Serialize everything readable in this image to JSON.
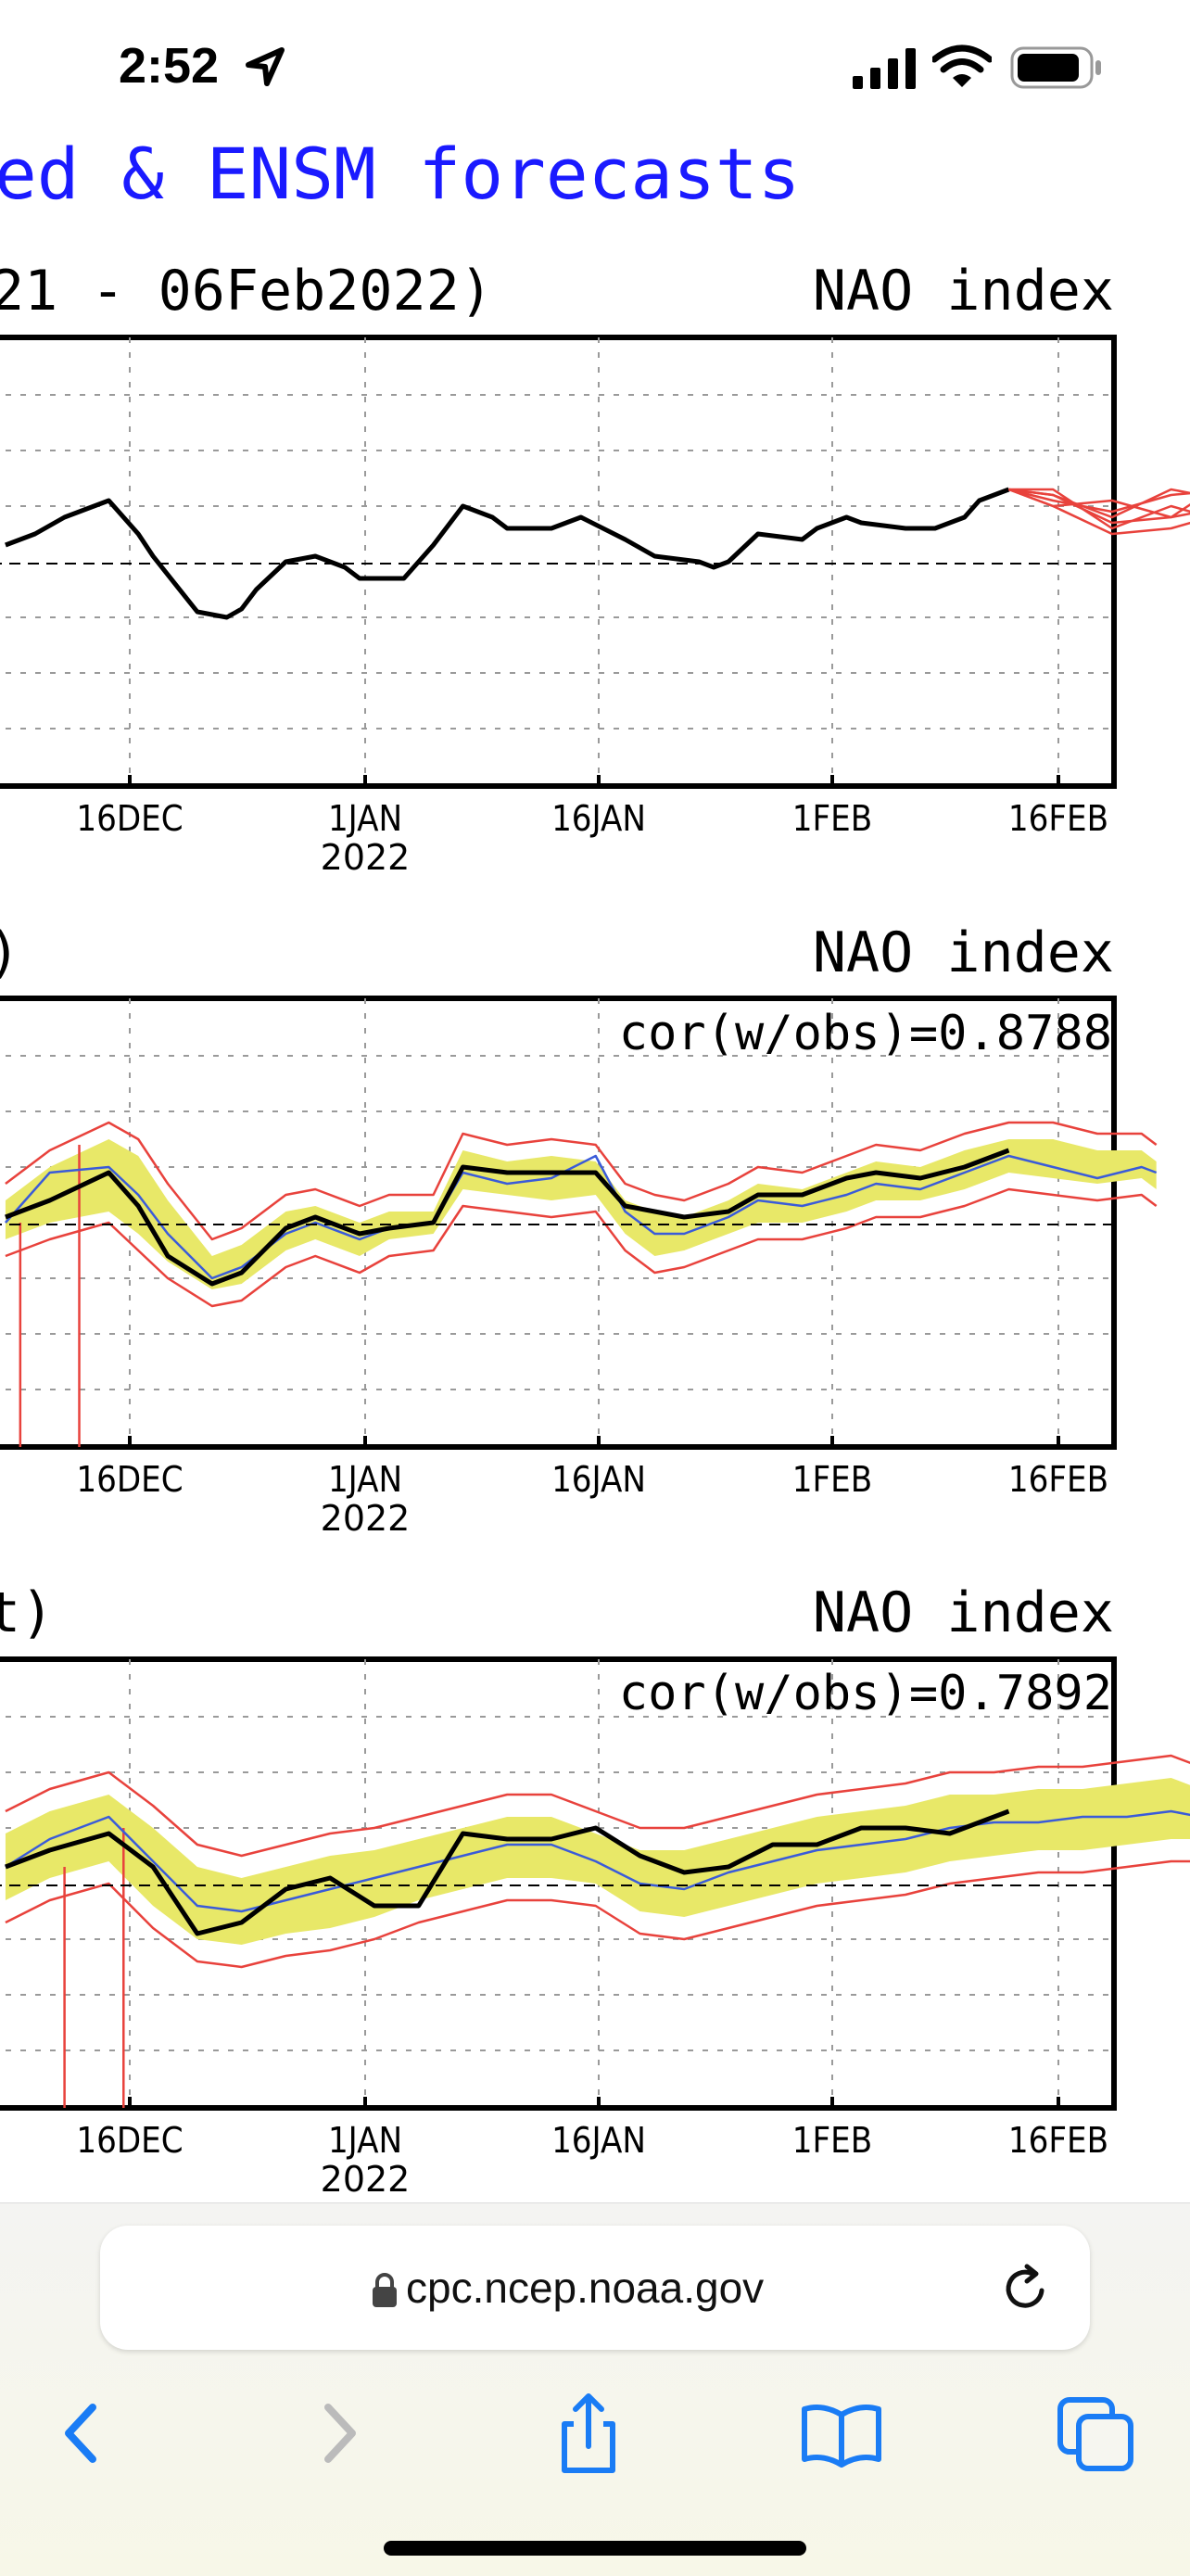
{
  "status_bar": {
    "time": "2:52"
  },
  "browser": {
    "url": "cpc.ncep.noaa.gov"
  },
  "page_title": "ed & ENSM forecasts",
  "chart_data": [
    {
      "type": "line",
      "title": "21 - 06Feb2022)",
      "label_right": "NAO index",
      "x_ticks": [
        "16DEC",
        "1JAN",
        "16JAN",
        "1FEB",
        "16FEB"
      ],
      "x_subtick": "2022",
      "grid": true,
      "series": [
        {
          "color": "#000000",
          "x": [
            1,
            3,
            5,
            8,
            10,
            11,
            14,
            16,
            17,
            18,
            20,
            22,
            24,
            25,
            28,
            30,
            32,
            34,
            35,
            36,
            38,
            40,
            43,
            45,
            48,
            49,
            50,
            52,
            55,
            56,
            58,
            59,
            62,
            64,
            66,
            67,
            68,
            69
          ],
          "y": [
            0.3,
            0.5,
            0.8,
            1.1,
            0.5,
            0.1,
            -0.9,
            -1.0,
            -0.85,
            -0.5,
            0.0,
            0.1,
            -0.1,
            -0.3,
            -0.3,
            0.3,
            1.0,
            0.8,
            0.6,
            0.6,
            0.6,
            0.8,
            0.4,
            0.1,
            0.0,
            -0.1,
            0.0,
            0.5,
            0.4,
            0.6,
            0.8,
            0.7,
            0.6,
            0.6,
            0.8,
            1.1,
            1.2,
            1.3
          ]
        },
        {
          "color": "#e8423c",
          "x": [
            69,
            72,
            76,
            80,
            84,
            87
          ],
          "y": [
            1.3,
            1.2,
            0.7,
            0.8,
            1.0,
            0.6
          ]
        },
        {
          "color": "#e8423c",
          "x": [
            69,
            72,
            76,
            80,
            84,
            87
          ],
          "y": [
            1.3,
            1.0,
            0.5,
            0.6,
            0.9,
            1.4
          ]
        },
        {
          "color": "#e8423c",
          "x": [
            69,
            72,
            76,
            80,
            84,
            87
          ],
          "y": [
            1.3,
            1.1,
            0.9,
            1.2,
            1.3,
            1.0
          ]
        },
        {
          "color": "#e8423c",
          "x": [
            69,
            72,
            76,
            80,
            84,
            87
          ],
          "y": [
            1.3,
            1.3,
            0.6,
            1.0,
            0.7,
            0.8
          ]
        },
        {
          "color": "#e8423c",
          "x": [
            69,
            72,
            76,
            80,
            84,
            87
          ],
          "y": [
            1.3,
            1.0,
            1.1,
            0.8,
            1.5,
            1.2
          ]
        },
        {
          "color": "#e8423c",
          "x": [
            69,
            72,
            76,
            80,
            84,
            87
          ],
          "y": [
            1.3,
            1.2,
            0.8,
            1.3,
            1.1,
            0.5
          ]
        }
      ]
    },
    {
      "type": "line",
      "title": ")",
      "label_right": "NAO index",
      "annotation": "cor(w/obs)=0.8788",
      "x_ticks": [
        "16DEC",
        "1JAN",
        "16JAN",
        "1FEB",
        "16FEB"
      ],
      "x_subtick": "2022",
      "grid": true,
      "band": {
        "color": "#e8e868",
        "x": [
          1,
          4,
          8,
          10,
          12,
          15,
          17,
          20,
          22,
          25,
          27,
          30,
          32,
          35,
          38,
          41,
          43,
          45,
          47,
          50,
          52,
          55,
          58,
          60,
          63,
          66,
          69,
          72,
          75,
          78,
          79
        ],
        "lo": [
          -0.3,
          0.0,
          0.2,
          -0.2,
          -0.7,
          -1.2,
          -1.1,
          -0.5,
          -0.3,
          -0.6,
          -0.3,
          -0.2,
          0.6,
          0.5,
          0.4,
          0.5,
          -0.2,
          -0.6,
          -0.5,
          -0.2,
          0.0,
          0.0,
          0.2,
          0.4,
          0.4,
          0.6,
          0.9,
          0.8,
          0.7,
          0.8,
          0.6
        ],
        "hi": [
          0.4,
          1.0,
          1.5,
          1.2,
          0.4,
          -0.6,
          -0.4,
          0.2,
          0.3,
          0.0,
          0.2,
          0.2,
          1.3,
          1.1,
          1.2,
          1.1,
          0.4,
          0.2,
          0.1,
          0.4,
          0.7,
          0.6,
          0.9,
          1.1,
          1.0,
          1.3,
          1.5,
          1.5,
          1.3,
          1.3,
          1.1
        ]
      },
      "series": [
        {
          "color": "#e8423c",
          "x": [
            1,
            4,
            8,
            10,
            12,
            15,
            17,
            20,
            22,
            25,
            27,
            30,
            32,
            35,
            38,
            41,
            43,
            45,
            47,
            50,
            52,
            55,
            58,
            60,
            63,
            66,
            69,
            72,
            75,
            78,
            79
          ],
          "y": [
            -0.6,
            -0.3,
            0.0,
            -0.5,
            -1.0,
            -1.5,
            -1.4,
            -0.8,
            -0.6,
            -0.9,
            -0.6,
            -0.5,
            0.3,
            0.2,
            0.1,
            0.2,
            -0.5,
            -0.9,
            -0.8,
            -0.5,
            -0.3,
            -0.3,
            -0.1,
            0.1,
            0.1,
            0.3,
            0.6,
            0.5,
            0.4,
            0.5,
            0.3
          ]
        },
        {
          "color": "#e8423c",
          "x": [
            1,
            4,
            8,
            10,
            12,
            15,
            17,
            20,
            22,
            25,
            27,
            30,
            32,
            35,
            38,
            41,
            43,
            45,
            47,
            50,
            52,
            55,
            58,
            60,
            63,
            66,
            69,
            72,
            75,
            78,
            79
          ],
          "y": [
            0.7,
            1.3,
            1.8,
            1.5,
            0.7,
            -0.3,
            -0.1,
            0.5,
            0.6,
            0.3,
            0.5,
            0.5,
            1.6,
            1.4,
            1.5,
            1.4,
            0.7,
            0.5,
            0.4,
            0.7,
            1.0,
            0.9,
            1.2,
            1.4,
            1.3,
            1.6,
            1.8,
            1.8,
            1.6,
            1.6,
            1.4
          ]
        },
        {
          "color": "#e8423c",
          "x": [
            2,
            2,
            2
          ],
          "y": [
            0.0,
            -2.0,
            -4.5
          ]
        },
        {
          "color": "#e8423c",
          "x": [
            6,
            6,
            6
          ],
          "y": [
            1.4,
            -2.0,
            -4.5
          ]
        },
        {
          "color": "#3a5bd9",
          "x": [
            1,
            4,
            8,
            10,
            12,
            15,
            17,
            20,
            22,
            25,
            27,
            30,
            32,
            35,
            38,
            41,
            43,
            45,
            47,
            50,
            52,
            55,
            58,
            60,
            63,
            66,
            69,
            72,
            75,
            78,
            79
          ],
          "y": [
            0.0,
            0.9,
            1.0,
            0.5,
            -0.2,
            -1.0,
            -0.8,
            -0.2,
            0.0,
            -0.3,
            -0.1,
            0.0,
            0.9,
            0.7,
            0.8,
            1.2,
            0.2,
            -0.2,
            -0.2,
            0.1,
            0.4,
            0.3,
            0.5,
            0.7,
            0.6,
            0.9,
            1.2,
            1.0,
            0.8,
            1.0,
            0.9
          ]
        },
        {
          "color": "#000000",
          "x": [
            1,
            4,
            8,
            10,
            12,
            15,
            17,
            20,
            22,
            25,
            27,
            30,
            32,
            35,
            38,
            41,
            43,
            45,
            47,
            50,
            52,
            55,
            58,
            60,
            63,
            66,
            69
          ],
          "y": [
            0.1,
            0.4,
            0.9,
            0.3,
            -0.6,
            -1.1,
            -0.9,
            -0.1,
            0.1,
            -0.2,
            -0.1,
            0.0,
            1.0,
            0.9,
            0.9,
            0.9,
            0.3,
            0.2,
            0.1,
            0.2,
            0.5,
            0.5,
            0.8,
            0.9,
            0.8,
            1.0,
            1.3
          ]
        }
      ]
    },
    {
      "type": "line",
      "title": "t)",
      "label_right": "NAO index",
      "annotation": "cor(w/obs)=0.7892",
      "x_ticks": [
        "16DEC",
        "1JAN",
        "16JAN",
        "1FEB",
        "16FEB"
      ],
      "x_subtick": "2022",
      "grid": true,
      "band": {
        "color": "#e8e868",
        "x": [
          1,
          4,
          8,
          11,
          14,
          17,
          20,
          23,
          26,
          29,
          32,
          35,
          38,
          41,
          44,
          47,
          50,
          53,
          56,
          59,
          62,
          65,
          68,
          71,
          74,
          77,
          80,
          82
        ],
        "lo": [
          -0.3,
          0.1,
          0.4,
          -0.4,
          -1.0,
          -1.1,
          -0.9,
          -0.8,
          -0.6,
          -0.3,
          -0.1,
          0.1,
          0.1,
          0.0,
          -0.5,
          -0.6,
          -0.4,
          -0.2,
          0.0,
          0.1,
          0.2,
          0.4,
          0.5,
          0.6,
          0.6,
          0.7,
          0.8,
          0.8
        ],
        "hi": [
          0.9,
          1.3,
          1.6,
          1.0,
          0.3,
          0.1,
          0.3,
          0.5,
          0.6,
          0.8,
          1.0,
          1.2,
          1.2,
          0.9,
          0.6,
          0.6,
          0.8,
          1.0,
          1.2,
          1.3,
          1.4,
          1.6,
          1.6,
          1.7,
          1.7,
          1.8,
          1.9,
          1.7
        ]
      },
      "series": [
        {
          "color": "#e8423c",
          "x": [
            1,
            4,
            8,
            11,
            14,
            17,
            20,
            23,
            26,
            29,
            32,
            35,
            38,
            41,
            44,
            47,
            50,
            53,
            56,
            59,
            62,
            65,
            68,
            71,
            74,
            77,
            80,
            82
          ],
          "y": [
            -0.7,
            -0.3,
            0.0,
            -0.8,
            -1.4,
            -1.5,
            -1.3,
            -1.2,
            -1.0,
            -0.7,
            -0.5,
            -0.3,
            -0.3,
            -0.4,
            -0.9,
            -1.0,
            -0.8,
            -0.6,
            -0.4,
            -0.3,
            -0.2,
            0.0,
            0.1,
            0.2,
            0.2,
            0.3,
            0.4,
            0.4
          ]
        },
        {
          "color": "#e8423c",
          "x": [
            1,
            4,
            8,
            11,
            14,
            17,
            20,
            23,
            26,
            29,
            32,
            35,
            38,
            41,
            44,
            47,
            50,
            53,
            56,
            59,
            62,
            65,
            68,
            71,
            74,
            77,
            80,
            82
          ],
          "y": [
            1.3,
            1.7,
            2.0,
            1.4,
            0.7,
            0.5,
            0.7,
            0.9,
            1.0,
            1.2,
            1.4,
            1.6,
            1.6,
            1.3,
            1.0,
            1.0,
            1.2,
            1.4,
            1.6,
            1.7,
            1.8,
            2.0,
            2.0,
            2.1,
            2.1,
            2.2,
            2.3,
            2.1
          ]
        },
        {
          "color": "#e8423c",
          "x": [
            5,
            5,
            5
          ],
          "y": [
            0.3,
            -2.0,
            -4.5
          ]
        },
        {
          "color": "#e8423c",
          "x": [
            9,
            9,
            9
          ],
          "y": [
            1.0,
            -2.0,
            -4.5
          ]
        },
        {
          "color": "#3a5bd9",
          "x": [
            1,
            4,
            8,
            11,
            14,
            17,
            20,
            23,
            26,
            29,
            32,
            35,
            38,
            41,
            44,
            47,
            50,
            53,
            56,
            59,
            62,
            65,
            68,
            71,
            74,
            77,
            80,
            82
          ],
          "y": [
            0.3,
            0.8,
            1.2,
            0.4,
            -0.4,
            -0.5,
            -0.3,
            -0.1,
            0.1,
            0.3,
            0.5,
            0.7,
            0.7,
            0.4,
            0.0,
            -0.1,
            0.2,
            0.4,
            0.6,
            0.7,
            0.8,
            1.0,
            1.1,
            1.1,
            1.2,
            1.2,
            1.3,
            1.2
          ]
        },
        {
          "color": "#000000",
          "x": [
            1,
            4,
            8,
            11,
            14,
            17,
            20,
            23,
            26,
            29,
            32,
            35,
            38,
            41,
            44,
            47,
            50,
            53,
            56,
            59,
            62,
            65,
            68,
            69
          ],
          "y": [
            0.3,
            0.6,
            0.9,
            0.3,
            -0.9,
            -0.7,
            -0.1,
            0.1,
            -0.4,
            -0.4,
            0.9,
            0.8,
            0.8,
            1.0,
            0.5,
            0.2,
            0.3,
            0.7,
            0.7,
            1.0,
            1.0,
            0.9,
            1.2,
            1.3
          ]
        }
      ]
    }
  ]
}
